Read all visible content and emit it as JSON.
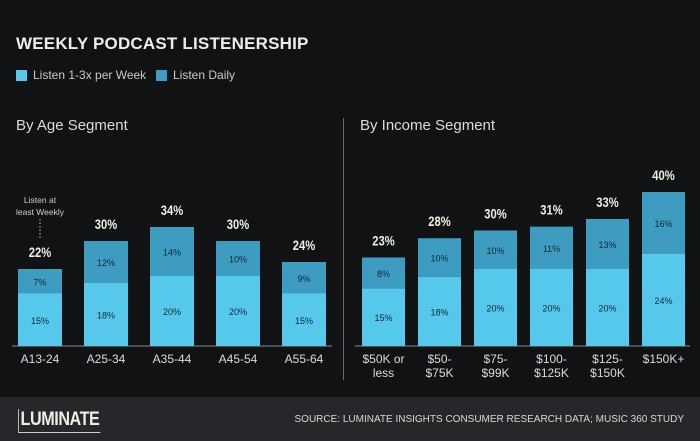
{
  "title": "WEEKLY PODCAST LISTENERSHIP",
  "annotation_line1": "Listen at",
  "annotation_line2": "least Weekly",
  "footer": {
    "logo": "LUMINATE",
    "source": "SOURCE:  LUMINATE INSIGHTS CONSUMER RESEARCH DATA; MUSIC 360 STUDY"
  },
  "colors": {
    "weekly": "#56c8ec",
    "daily": "#3d9cc0",
    "background": "#111214"
  },
  "legend": [
    {
      "label": "Listen 1-3x per Week",
      "color": "#56c8ec"
    },
    {
      "label": "Listen Daily",
      "color": "#3d9cc0"
    }
  ],
  "chart_data": [
    {
      "type": "bar",
      "stacked": true,
      "title": "By Age Segment",
      "categories": [
        "A13-24",
        "A25-34",
        "A35-44",
        "A45-54",
        "A55-64"
      ],
      "series": [
        {
          "name": "Listen 1-3x per Week",
          "values": [
            15,
            18,
            20,
            20,
            15
          ]
        },
        {
          "name": "Listen Daily",
          "values": [
            7,
            12,
            14,
            10,
            9
          ]
        }
      ],
      "totals": [
        "22%",
        "30%",
        "34%",
        "30%",
        "24%"
      ],
      "ylim": [
        0,
        40
      ]
    },
    {
      "type": "bar",
      "stacked": true,
      "title": "By Income Segment",
      "categories": [
        [
          "$50K or",
          "less"
        ],
        [
          "$50-",
          "$75K"
        ],
        [
          "$75-",
          "$99K"
        ],
        [
          "$100-",
          "$125K"
        ],
        [
          "$125-",
          "$150K"
        ],
        [
          "$150K+"
        ]
      ],
      "series": [
        {
          "name": "Listen 1-3x per Week",
          "values": [
            15,
            18,
            20,
            20,
            20,
            24
          ]
        },
        {
          "name": "Listen Daily",
          "values": [
            8,
            10,
            10,
            11,
            13,
            16
          ]
        }
      ],
      "totals": [
        "23%",
        "28%",
        "30%",
        "31%",
        "33%",
        "40%"
      ],
      "ylim": [
        0,
        40
      ]
    }
  ]
}
